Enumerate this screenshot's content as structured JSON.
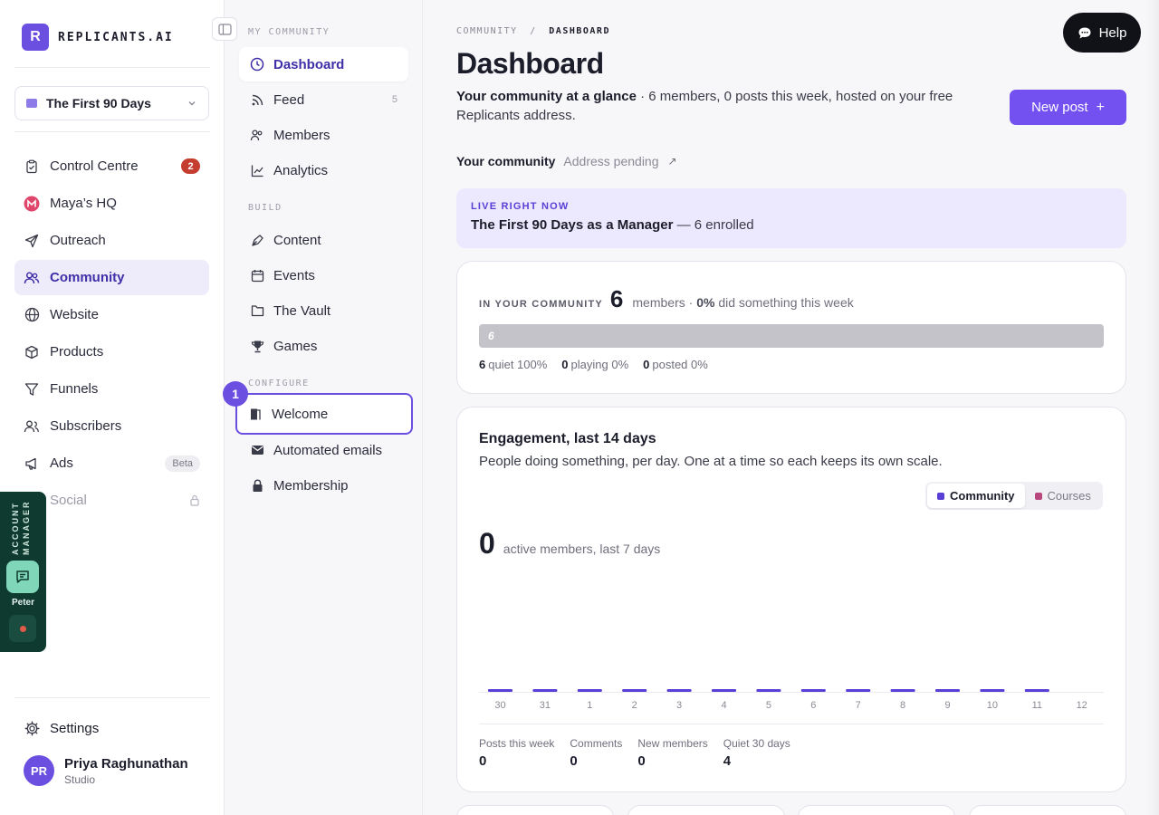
{
  "brand": {
    "logo_letter": "R",
    "name": "REPLICANTS.AI"
  },
  "workspace": {
    "label": "The First 90 Days"
  },
  "nav": {
    "items": [
      {
        "label": "Control Centre",
        "icon": "clipboard-icon",
        "badge": "2"
      },
      {
        "label": "Maya’s HQ",
        "icon": "maya-logo-icon"
      },
      {
        "label": "Outreach",
        "icon": "send-icon"
      },
      {
        "label": "Community",
        "icon": "users-icon",
        "active": true
      },
      {
        "label": "Website",
        "icon": "globe-icon"
      },
      {
        "label": "Products",
        "icon": "box-icon"
      },
      {
        "label": "Funnels",
        "icon": "funnel-icon"
      },
      {
        "label": "Subscribers",
        "icon": "subscribers-icon"
      },
      {
        "label": "Ads",
        "icon": "megaphone-icon",
        "badge": "Beta"
      },
      {
        "label": "Social",
        "icon": "lock-icon",
        "locked": true
      }
    ],
    "settings_label": "Settings"
  },
  "user": {
    "initials": "PR",
    "name": "Priya Raghunathan",
    "role": "Studio"
  },
  "account_manager": {
    "title": "ACCOUNT MANAGER",
    "name": "Peter",
    "status_color": "#e25a4a"
  },
  "subnav": {
    "section_community": "MY COMMUNITY",
    "section_build": "BUILD",
    "section_configure": "CONFIGURE",
    "dashboard": "Dashboard",
    "feed": "Feed",
    "feed_count": "5",
    "members": "Members",
    "analytics": "Analytics",
    "content": "Content",
    "events": "Events",
    "vault": "The Vault",
    "games": "Games",
    "welcome": "Welcome",
    "automated_emails": "Automated emails",
    "membership": "Membership",
    "step_number": "1"
  },
  "breadcrumb": {
    "parent": "COMMUNITY",
    "separator": "/",
    "current": "DASHBOARD"
  },
  "help_label": "Help",
  "page": {
    "title": "Dashboard",
    "glance_bold": "Your community at a glance",
    "glance_rest": " · 6 members, 0 posts this week, hosted on your free Replicants address.",
    "new_post_label": "New post",
    "new_post_plus": "+"
  },
  "your_community": {
    "label": "Your community",
    "address": "Address pending",
    "arrow": "↗"
  },
  "live": {
    "tag": "LIVE RIGHT NOW",
    "course": "The First 90 Days as a Manager",
    "enrolled": " — 6 enrolled"
  },
  "summary": {
    "tag": "IN YOUR COMMUNITY",
    "members": "6",
    "members_text": "members ·",
    "active_pct": "0%",
    "active_text": "did something this week",
    "bar_label": "6",
    "quiet_count": "6",
    "quiet_text": "quiet 100%",
    "playing_count": "0",
    "playing_text": "playing 0%",
    "posted_count": "0",
    "posted_text": "posted 0%"
  },
  "engagement": {
    "title": "Engagement, last 14 days",
    "subtitle": "People doing something, per day. One at a time so each keeps its own scale.",
    "toggle_community": "Community",
    "toggle_courses": "Courses",
    "community_color": "#5a3fd6",
    "courses_color": "#b8477e",
    "big_number": "0",
    "big_label": "active members, last 7 days",
    "footer": [
      {
        "label": "Posts this week",
        "value": "0"
      },
      {
        "label": "Comments",
        "value": "0"
      },
      {
        "label": "New members",
        "value": "0"
      },
      {
        "label": "Quiet 30 days",
        "value": "4"
      }
    ]
  },
  "chart_data": {
    "type": "bar",
    "title": "Engagement, last 14 days",
    "categories": [
      "30",
      "31",
      "1",
      "2",
      "3",
      "4",
      "5",
      "6",
      "7",
      "8",
      "9",
      "10",
      "11",
      "12"
    ],
    "series": [
      {
        "name": "Community",
        "values": [
          0,
          0,
          0,
          0,
          0,
          0,
          0,
          0,
          0,
          0,
          0,
          0,
          0,
          0
        ]
      }
    ],
    "xlabel": "",
    "ylabel": "",
    "grid": false,
    "legend": "top-right"
  }
}
